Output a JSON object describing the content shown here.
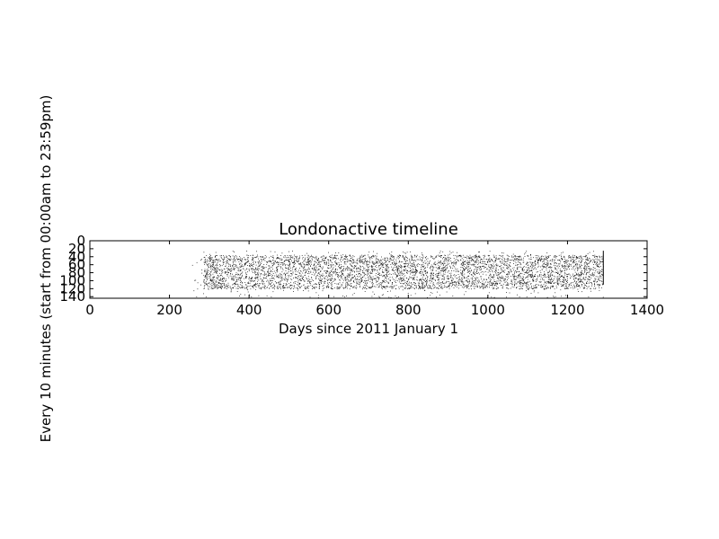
{
  "chart_data": {
    "type": "scatter",
    "title": "Londonactive timeline",
    "xlabel": "Days since 2011 January 1",
    "ylabel": "Every 10 minutes (start from 00:00am to 23:59pm)",
    "xlim": [
      0,
      1400
    ],
    "ylim": [
      0,
      144
    ],
    "y_inverted": true,
    "grid": false,
    "x_ticks": [
      0,
      200,
      400,
      600,
      800,
      1000,
      1200,
      1400
    ],
    "y_ticks": [
      0,
      20,
      40,
      60,
      80,
      100,
      120,
      140
    ],
    "marker": "pixel",
    "marker_color": "#000000",
    "series": [
      {
        "x_range": [
          255,
          1290
        ],
        "y_range": [
          25,
          144
        ],
        "dense_x_range": [
          285,
          1290
        ],
        "dense_y_range": [
          35,
          120
        ]
      }
    ]
  }
}
